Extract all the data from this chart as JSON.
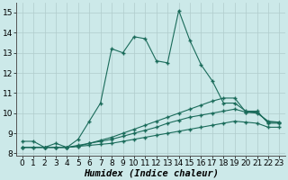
{
  "xlabel": "Humidex (Indice chaleur)",
  "xlim": [
    -0.5,
    23.5
  ],
  "ylim": [
    7.9,
    15.5
  ],
  "yticks": [
    8,
    9,
    10,
    11,
    12,
    13,
    14,
    15
  ],
  "xticks": [
    0,
    1,
    2,
    3,
    4,
    5,
    6,
    7,
    8,
    9,
    10,
    11,
    12,
    13,
    14,
    15,
    16,
    17,
    18,
    19,
    20,
    21,
    22,
    23
  ],
  "bg_color": "#cce9e9",
  "grid_color": "#b0cccc",
  "line_color": "#1a6b5a",
  "zigzag_x": [
    0,
    1,
    2,
    3,
    4,
    5,
    6,
    7,
    8,
    9,
    10,
    11,
    12,
    13,
    14,
    15,
    16,
    17,
    18,
    19,
    20,
    21,
    22,
    23
  ],
  "zigzag_y": [
    8.6,
    8.6,
    8.3,
    8.5,
    8.3,
    8.7,
    9.6,
    10.5,
    13.2,
    13.0,
    13.8,
    13.7,
    12.6,
    12.5,
    15.1,
    13.6,
    12.4,
    11.6,
    10.5,
    10.5,
    10.1,
    10.1,
    9.5,
    9.5
  ],
  "line_a_x": [
    0,
    1,
    2,
    3,
    4,
    5,
    6,
    7,
    8,
    9,
    10,
    11,
    12,
    13,
    14,
    15,
    16,
    17,
    18,
    19,
    20,
    21,
    22,
    23
  ],
  "line_a_y": [
    8.3,
    8.3,
    8.3,
    8.3,
    8.3,
    8.35,
    8.4,
    8.45,
    8.5,
    8.6,
    8.7,
    8.8,
    8.9,
    9.0,
    9.1,
    9.2,
    9.3,
    9.4,
    9.5,
    9.6,
    9.55,
    9.5,
    9.3,
    9.3
  ],
  "line_b_x": [
    0,
    1,
    2,
    3,
    4,
    5,
    6,
    7,
    8,
    9,
    10,
    11,
    12,
    13,
    14,
    15,
    16,
    17,
    18,
    19,
    20,
    21,
    22,
    23
  ],
  "line_b_y": [
    8.3,
    8.3,
    8.3,
    8.3,
    8.3,
    8.4,
    8.5,
    8.6,
    8.7,
    8.85,
    9.0,
    9.15,
    9.3,
    9.5,
    9.65,
    9.8,
    9.9,
    10.0,
    10.1,
    10.2,
    10.05,
    10.0,
    9.6,
    9.55
  ],
  "line_c_x": [
    0,
    2,
    3,
    4,
    5,
    6,
    7,
    8,
    9,
    10,
    11,
    12,
    13,
    14,
    15,
    16,
    17,
    18,
    19,
    20,
    21,
    22,
    23
  ],
  "line_c_y": [
    8.3,
    8.3,
    8.3,
    8.3,
    8.35,
    8.5,
    8.65,
    8.8,
    9.0,
    9.2,
    9.4,
    9.6,
    9.8,
    10.0,
    10.2,
    10.4,
    10.6,
    10.75,
    10.75,
    10.05,
    10.05,
    9.55,
    9.55
  ],
  "tick_fontsize": 6.5,
  "xlabel_fontsize": 7.5
}
